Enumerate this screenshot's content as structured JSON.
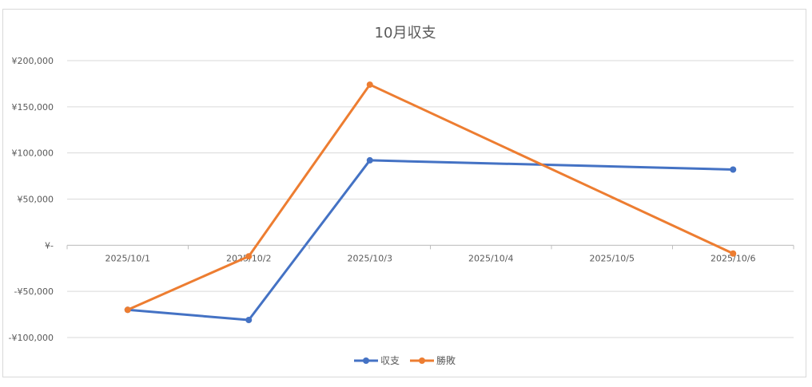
{
  "chart_data": {
    "type": "line",
    "title": "10月収支",
    "xlabel": "",
    "ylabel": "",
    "categories": [
      "2025/10/1",
      "2025/10/2",
      "2025/10/3",
      "2025/10/4",
      "2025/10/5",
      "2025/10/6"
    ],
    "ylim": [
      -100000,
      200000
    ],
    "yticks": [
      200000,
      150000,
      100000,
      50000,
      0,
      -50000,
      -100000
    ],
    "ytick_labels": [
      "¥200,000",
      "¥150,000",
      "¥100,000",
      "¥50,000",
      "¥-",
      "-¥50,000",
      "-¥100,000"
    ],
    "grid": true,
    "legend_position": "bottom",
    "series": [
      {
        "name": "収支",
        "color": "#4472c4",
        "points": [
          {
            "x": "2025/10/1",
            "y": -70000
          },
          {
            "x": "2025/10/2",
            "y": -81000
          },
          {
            "x": "2025/10/3",
            "y": 92000
          },
          {
            "x": "2025/10/6",
            "y": 82000
          }
        ]
      },
      {
        "name": "勝敗",
        "color": "#ed7d31",
        "points": [
          {
            "x": "2025/10/1",
            "y": -70000
          },
          {
            "x": "2025/10/2",
            "y": -12000
          },
          {
            "x": "2025/10/3",
            "y": 174000
          },
          {
            "x": "2025/10/6",
            "y": -9000
          }
        ]
      }
    ]
  }
}
